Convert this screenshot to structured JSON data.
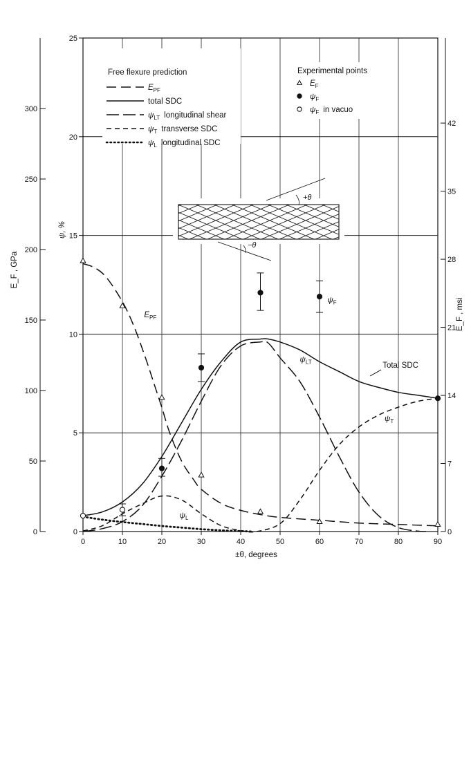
{
  "chart_data": {
    "type": "line",
    "x_label": "±θ, degrees",
    "x_range": [
      0,
      90
    ],
    "x_ticks": [
      "0",
      "10",
      "20",
      "30",
      "40",
      "50",
      "60",
      "70",
      "80",
      "90"
    ],
    "psi_axis": {
      "label": "ψ, %",
      "range": [
        0,
        25
      ],
      "ticks": [
        "0",
        "5",
        "10",
        "15",
        "20",
        "25"
      ]
    },
    "gpa_axis": {
      "label": "E_F , GPa",
      "range": [
        0,
        350
      ],
      "ticks": [
        "0",
        "50",
        "100",
        "150",
        "200",
        "250",
        "300"
      ]
    },
    "msi_axis": {
      "label": "E_F , msi",
      "range": [
        0,
        50.75
      ],
      "ticks": [
        "0",
        "7",
        "14",
        "21",
        "28",
        "35",
        "42"
      ]
    },
    "legend_title": "Free flexure prediction",
    "legend": [
      {
        "id": "epf",
        "sym": "E",
        "sub": "PF",
        "desc": "",
        "dash": "14,7"
      },
      {
        "id": "total",
        "sym": "total SDC",
        "sub": "",
        "desc": "",
        "dash": ""
      },
      {
        "id": "lt",
        "sym": "ψ",
        "sub": "LT",
        "desc": "longitudinal shear",
        "dash": "18,6"
      },
      {
        "id": "t",
        "sym": "ψ",
        "sub": "T",
        "desc": "transverse SDC",
        "dash": "7,5"
      },
      {
        "id": "l",
        "sym": "ψ",
        "sub": "L",
        "desc": "longitudinal SDC",
        "dash": "1.5,4"
      }
    ],
    "exp_title": "Experimental points",
    "exp_legend": [
      {
        "marker": "triangle",
        "sym": "E",
        "sub": "F",
        "desc": ""
      },
      {
        "marker": "filled",
        "sym": "ψ",
        "sub": "F",
        "desc": ""
      },
      {
        "marker": "open",
        "sym": "ψ",
        "sub": "F",
        "desc": "in vacuo"
      }
    ],
    "series": [
      {
        "id": "total",
        "axis": "psi",
        "dash": "",
        "x": [
          0,
          5,
          10,
          15,
          20,
          25,
          30,
          35,
          40,
          45,
          47,
          50,
          55,
          60,
          65,
          70,
          75,
          80,
          85,
          90
        ],
        "y": [
          0.8,
          1.0,
          1.5,
          2.4,
          3.8,
          5.5,
          7.2,
          8.6,
          9.6,
          9.75,
          9.75,
          9.6,
          9.2,
          8.6,
          8.1,
          7.6,
          7.3,
          7.05,
          6.9,
          6.75
        ]
      },
      {
        "id": "lt",
        "axis": "psi",
        "dash": "18,6",
        "x": [
          0,
          5,
          10,
          15,
          20,
          25,
          30,
          35,
          40,
          45,
          47,
          50,
          55,
          60,
          65,
          70,
          75,
          80,
          85,
          87
        ],
        "y": [
          0,
          0.15,
          0.5,
          1.3,
          2.8,
          4.6,
          6.6,
          8.4,
          9.4,
          9.6,
          9.55,
          8.8,
          7.6,
          5.8,
          3.8,
          2.0,
          0.8,
          0.2,
          0.02,
          0
        ]
      },
      {
        "id": "t",
        "axis": "psi",
        "dash": "7,5",
        "x": [
          0,
          5,
          10,
          15,
          20,
          25,
          30,
          35,
          40,
          44,
          50,
          55,
          60,
          65,
          70,
          75,
          80,
          85,
          90
        ],
        "y": [
          0.03,
          0.3,
          0.9,
          1.4,
          1.8,
          1.6,
          0.9,
          0.3,
          0.05,
          0,
          0.4,
          1.6,
          3.1,
          4.4,
          5.3,
          5.9,
          6.3,
          6.6,
          6.75
        ]
      },
      {
        "id": "l",
        "axis": "psi",
        "dash": "1.5,4",
        "x": [
          0,
          5,
          10,
          15,
          20,
          25,
          30,
          35,
          40,
          43
        ],
        "y": [
          0.75,
          0.6,
          0.48,
          0.38,
          0.28,
          0.2,
          0.12,
          0.06,
          0.02,
          0
        ]
      },
      {
        "id": "epf",
        "axis": "gpa",
        "dash": "14,7",
        "x": [
          0,
          3,
          6,
          10,
          13,
          16,
          18,
          20,
          22,
          25,
          28,
          30,
          35,
          40,
          45,
          50,
          60,
          70,
          80,
          90
        ],
        "y": [
          190,
          187,
          180,
          163,
          145,
          122,
          105,
          88,
          70,
          50,
          37,
          30,
          20,
          15,
          12,
          10,
          8,
          6,
          5,
          4
        ]
      }
    ],
    "points": [
      {
        "marker": "triangle",
        "axis": "gpa",
        "x": 0,
        "y": 192
      },
      {
        "marker": "triangle",
        "axis": "gpa",
        "x": 10,
        "y": 160
      },
      {
        "marker": "triangle",
        "axis": "gpa",
        "x": 20,
        "y": 95
      },
      {
        "marker": "triangle",
        "axis": "gpa",
        "x": 30,
        "y": 40
      },
      {
        "marker": "triangle",
        "axis": "gpa",
        "x": 45,
        "y": 14
      },
      {
        "marker": "triangle",
        "axis": "gpa",
        "x": 60,
        "y": 7
      },
      {
        "marker": "triangle",
        "axis": "gpa",
        "x": 90,
        "y": 5
      },
      {
        "marker": "filled",
        "axis": "psi",
        "x": 20,
        "y": 3.2,
        "err": [
          2.8,
          3.7
        ]
      },
      {
        "marker": "filled",
        "axis": "psi",
        "x": 30,
        "y": 8.3,
        "err": [
          7.6,
          9.0
        ]
      },
      {
        "marker": "filled",
        "axis": "psi",
        "x": 45,
        "y": 12.1,
        "err": [
          11.2,
          13.1
        ]
      },
      {
        "marker": "filled",
        "axis": "psi",
        "x": 60,
        "y": 11.9,
        "err": [
          11.1,
          12.7
        ]
      },
      {
        "marker": "filled",
        "axis": "psi",
        "x": 90,
        "y": 6.75
      },
      {
        "marker": "open",
        "axis": "psi",
        "x": 0,
        "y": 0.8
      },
      {
        "marker": "open",
        "axis": "psi",
        "x": 10,
        "y": 1.1,
        "err": [
          0.8,
          1.4
        ]
      }
    ],
    "curve_labels": [
      {
        "sym": "E",
        "sub": "PF",
        "axis": "gpa",
        "x": 15.5,
        "y": 152
      },
      {
        "sym": "ψ",
        "sub": "LT",
        "axis": "psi",
        "x": 55,
        "y": 8.6
      },
      {
        "sym": "Total SDC",
        "sub": "",
        "axis": "psi",
        "x": 76,
        "y": 8.3
      },
      {
        "sym": "ψ",
        "sub": "T",
        "axis": "psi",
        "x": 76.5,
        "y": 5.6
      },
      {
        "sym": "ψ",
        "sub": "L",
        "axis": "psi",
        "x": 24.5,
        "y": 0.7
      },
      {
        "sym": "ψ",
        "sub": "F",
        "axis": "psi",
        "x": 62,
        "y": 11.6
      }
    ],
    "inset": {
      "plus_label": "+θ",
      "minus_label": "−θ"
    },
    "grid": {
      "vertical": true,
      "horizontal_psi": [
        5,
        10,
        15,
        20
      ]
    }
  }
}
